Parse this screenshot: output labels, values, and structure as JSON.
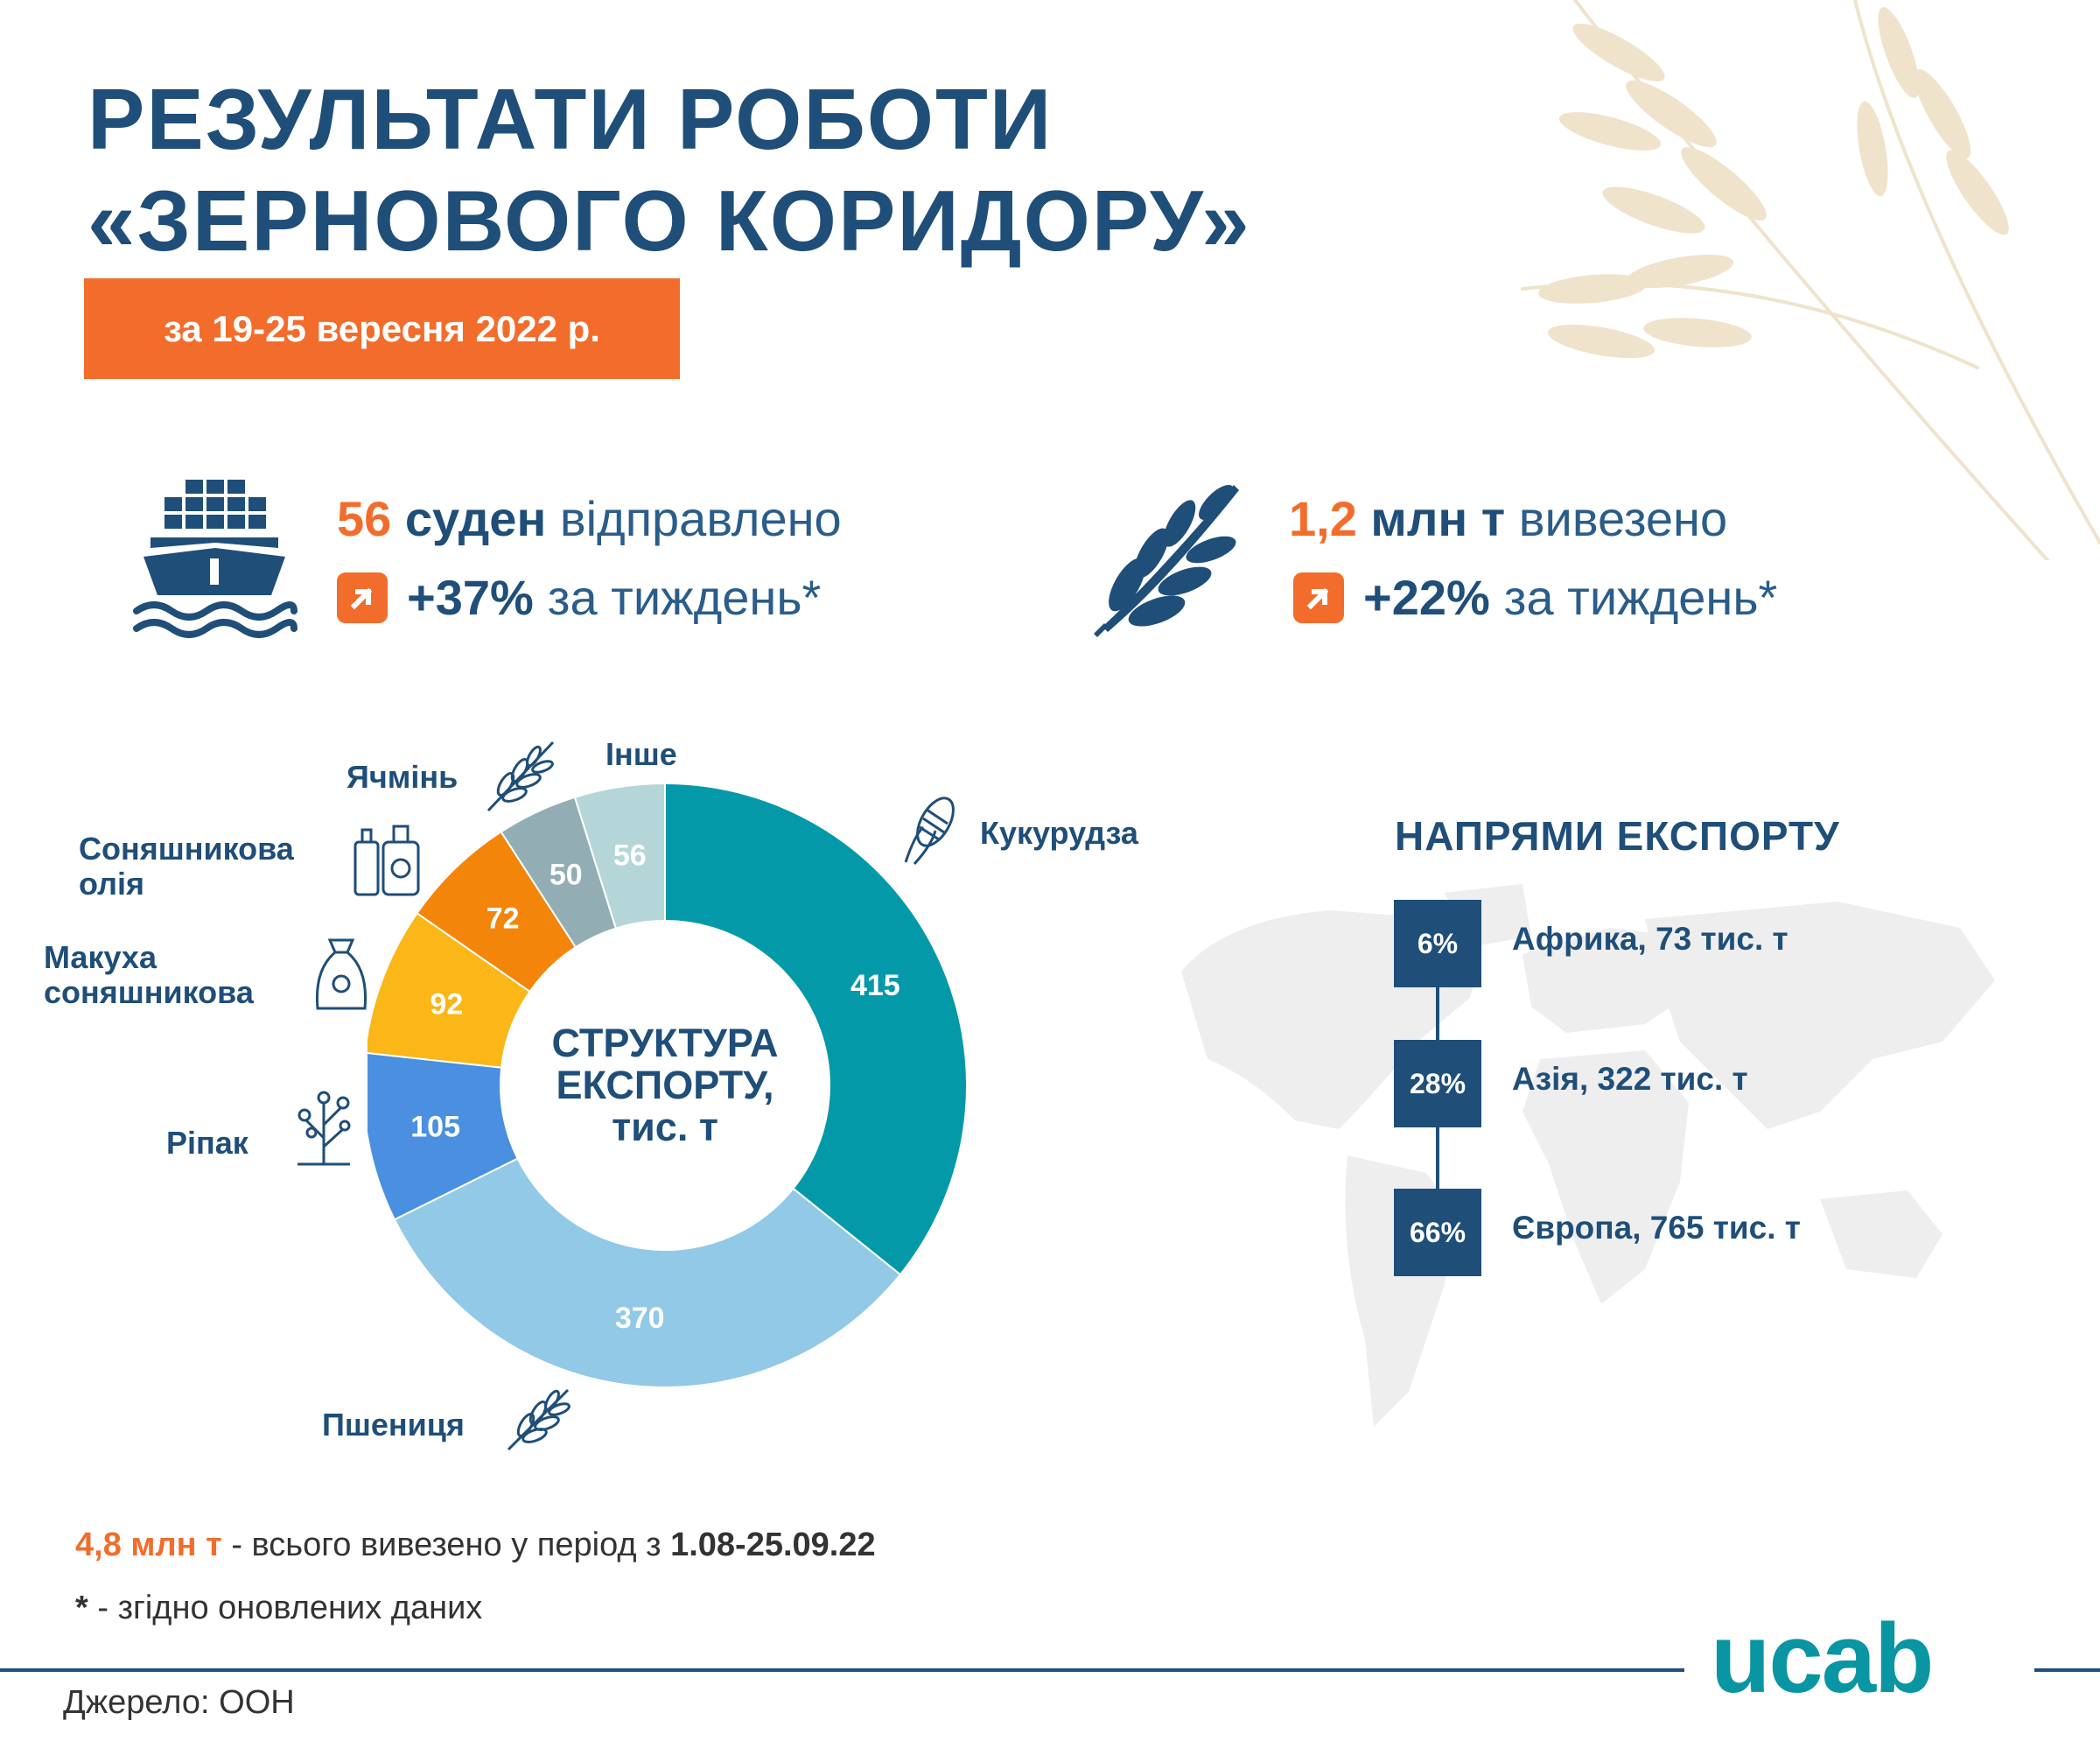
{
  "header": {
    "title_line1": "РЕЗУЛЬТАТИ РОБОТИ",
    "title_line2": "«ЗЕРНОВОГО КОРИДОРУ»",
    "period": "за 19-25 вересня 2022 р."
  },
  "stats": {
    "ships": {
      "number": "56",
      "unit": "суден",
      "verb": "відправлено",
      "change": "+37%",
      "change_text": "за тиждень*"
    },
    "volume": {
      "number": "1,2",
      "unit": "млн т",
      "verb": "вивезено",
      "change": "+22%",
      "change_text": "за тиждень*"
    }
  },
  "chart_data": {
    "type": "pie",
    "title": "СТРУКТУРА ЕКСПОРТУ, тис. т",
    "categories": [
      "Кукурудза",
      "Пшениця",
      "Ріпак",
      "Макуха соняшникова",
      "Соняшникова олія",
      "Ячмінь",
      "Інше"
    ],
    "values": [
      415,
      370,
      105,
      92,
      72,
      50,
      56
    ],
    "colors": [
      "#0399a8",
      "#92c9e6",
      "#4a8fe0",
      "#fbb617",
      "#f4850b",
      "#92aeb4",
      "#b5d6d8"
    ],
    "unit": "тис. т"
  },
  "chart_center": {
    "line1": "СТРУКТУРА",
    "line2": "ЕКСПОРТУ,",
    "line3": "тис. т"
  },
  "labels": {
    "corn": "Кукурудза",
    "wheat": "Пшениця",
    "rapeseed": "Ріпак",
    "meal_line1": "Макуха",
    "meal_line2": "соняшникова",
    "oil_line1": "Соняшникова",
    "oil_line2": "олія",
    "barley": "Ячмінь",
    "other": "Інше"
  },
  "export_directions": {
    "title": "НАПРЯМИ ЕКСПОРТУ",
    "items": [
      {
        "percent": "6%",
        "label": "Африка, 73 тис. т"
      },
      {
        "percent": "28%",
        "label": "Азія, 322 тис. т"
      },
      {
        "percent": "66%",
        "label": "Європа, 765 тис. т"
      }
    ]
  },
  "footer": {
    "total_value": "4,8 млн т",
    "total_text": " - всього вивезено у період з ",
    "total_period": "1.08-25.09.22",
    "note_star": "*",
    "note_text": " - згідно оновлених даних",
    "source": "Джерело: ООН",
    "logo": "ucab"
  },
  "colors": {
    "navy": "#1f4e79",
    "orange": "#f26d2b",
    "teal": "#0a95a3"
  }
}
